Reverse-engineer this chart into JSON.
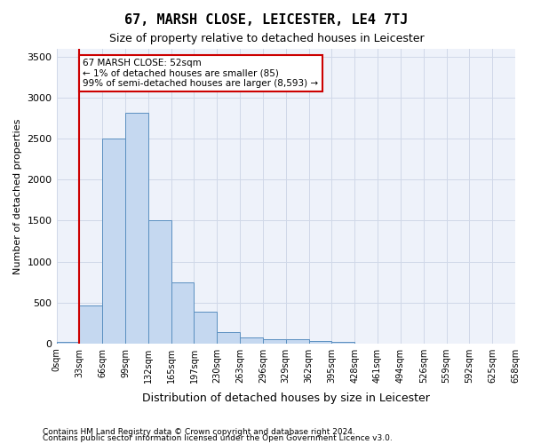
{
  "title": "67, MARSH CLOSE, LEICESTER, LE4 7TJ",
  "subtitle": "Size of property relative to detached houses in Leicester",
  "xlabel": "Distribution of detached houses by size in Leicester",
  "ylabel": "Number of detached properties",
  "bin_labels": [
    "0sqm",
    "33sqm",
    "66sqm",
    "99sqm",
    "132sqm",
    "165sqm",
    "197sqm",
    "230sqm",
    "263sqm",
    "296sqm",
    "329sqm",
    "362sqm",
    "395sqm",
    "428sqm",
    "461sqm",
    "494sqm",
    "526sqm",
    "559sqm",
    "592sqm",
    "625sqm",
    "658sqm"
  ],
  "bar_values": [
    20,
    460,
    2500,
    2820,
    1510,
    750,
    390,
    140,
    70,
    50,
    55,
    30,
    15,
    0,
    0,
    0,
    0,
    0,
    0,
    0
  ],
  "bar_color": "#c5d8f0",
  "bar_edge_color": "#5a8fc0",
  "vline_x": 1,
  "vline_color": "#cc0000",
  "annotation_text": "67 MARSH CLOSE: 52sqm\n← 1% of detached houses are smaller (85)\n99% of semi-detached houses are larger (8,593) →",
  "annotation_box_color": "#cc0000",
  "ylim": [
    0,
    3600
  ],
  "yticks": [
    0,
    500,
    1000,
    1500,
    2000,
    2500,
    3000,
    3500
  ],
  "grid_color": "#d0d8e8",
  "bg_color": "#eef2fa",
  "footer_line1": "Contains HM Land Registry data © Crown copyright and database right 2024.",
  "footer_line2": "Contains public sector information licensed under the Open Government Licence v3.0."
}
